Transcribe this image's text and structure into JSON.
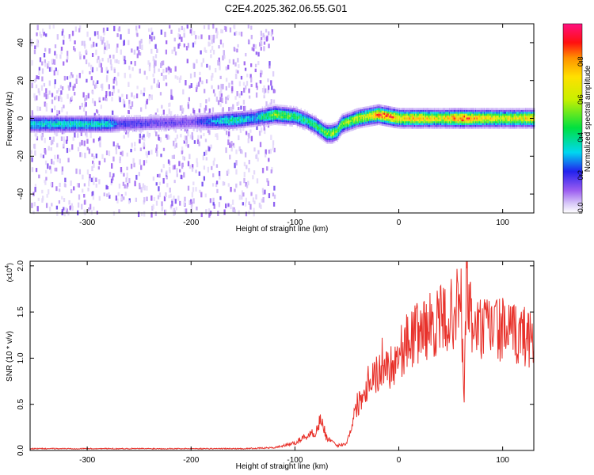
{
  "title": "C2E4.2025.362.06.55.G01",
  "chart_data": [
    {
      "type": "heatmap",
      "xlabel": "Height of straight line (km)",
      "ylabel": "Frequency (Hz)",
      "xlim": [
        -355,
        130
      ],
      "ylim": [
        -50,
        50
      ],
      "x_ticks": [
        -300,
        -200,
        -100,
        0,
        100
      ],
      "y_ticks": [
        -40,
        -20,
        0,
        20,
        40
      ],
      "colorbar": {
        "label": "Normalized spectral amplitude",
        "range": [
          0,
          1
        ],
        "ticks": [
          "0.0",
          "0.2",
          "0.4",
          "0.6",
          "0.8"
        ]
      },
      "ridge": {
        "x": [
          -355,
          -280,
          -270,
          -200,
          -160,
          -140,
          -120,
          -100,
          -90,
          -80,
          -70,
          -65,
          -60,
          -55,
          -50,
          -45,
          -40,
          -30,
          -20,
          -10,
          0,
          20,
          40,
          60,
          80,
          100,
          130
        ],
        "freq": [
          -3,
          -3,
          -3,
          -2,
          -1,
          0,
          2,
          1,
          -1,
          -4,
          -8,
          -8,
          -7,
          -3,
          -2,
          -1,
          0,
          1,
          2,
          1,
          0,
          0,
          0,
          0,
          0,
          0,
          0
        ],
        "amp": [
          0.35,
          0.35,
          0.2,
          0.15,
          0.4,
          0.3,
          0.55,
          0.45,
          0.4,
          0.45,
          0.5,
          0.6,
          0.5,
          0.55,
          0.55,
          0.55,
          0.6,
          0.65,
          0.8,
          0.85,
          0.7,
          0.75,
          0.65,
          0.85,
          0.7,
          0.65,
          0.7
        ]
      },
      "scatter_region_x": [
        -355,
        -120
      ]
    },
    {
      "type": "line",
      "xlabel": "Height of straight line (km)",
      "ylabel": "SNR (10 * v/v)",
      "y_multiplier": "(x10",
      "y_multiplier_exp": "4",
      "y_multiplier_close": ")",
      "xlim": [
        -355,
        130
      ],
      "ylim": [
        0,
        2.05
      ],
      "x_ticks": [
        -300,
        -200,
        -100,
        0,
        100
      ],
      "y_ticks": [
        0.0,
        0.5,
        1.0,
        1.5,
        2.0
      ],
      "color": "#e8312a",
      "series": [
        {
          "x": [
            -355,
            -300,
            -250,
            -200,
            -150,
            -120,
            -100,
            -90,
            -80,
            -75,
            -70,
            -60,
            -50,
            -45,
            -40,
            -35,
            -30,
            -25,
            -20,
            -15,
            -10,
            -5,
            0,
            10,
            20,
            30,
            40,
            50,
            55,
            60,
            63,
            65,
            70,
            80,
            90,
            100,
            110,
            120,
            130
          ],
          "y": [
            0.02,
            0.02,
            0.02,
            0.02,
            0.02,
            0.03,
            0.08,
            0.15,
            0.2,
            0.35,
            0.15,
            0.05,
            0.08,
            0.3,
            0.5,
            0.6,
            0.75,
            0.85,
            0.8,
            1.0,
            0.9,
            0.95,
            1.05,
            1.2,
            1.3,
            1.35,
            1.4,
            1.45,
            1.55,
            1.6,
            0.5,
            1.9,
            1.35,
            1.3,
            1.35,
            1.3,
            1.25,
            1.25,
            1.22
          ]
        }
      ]
    }
  ]
}
